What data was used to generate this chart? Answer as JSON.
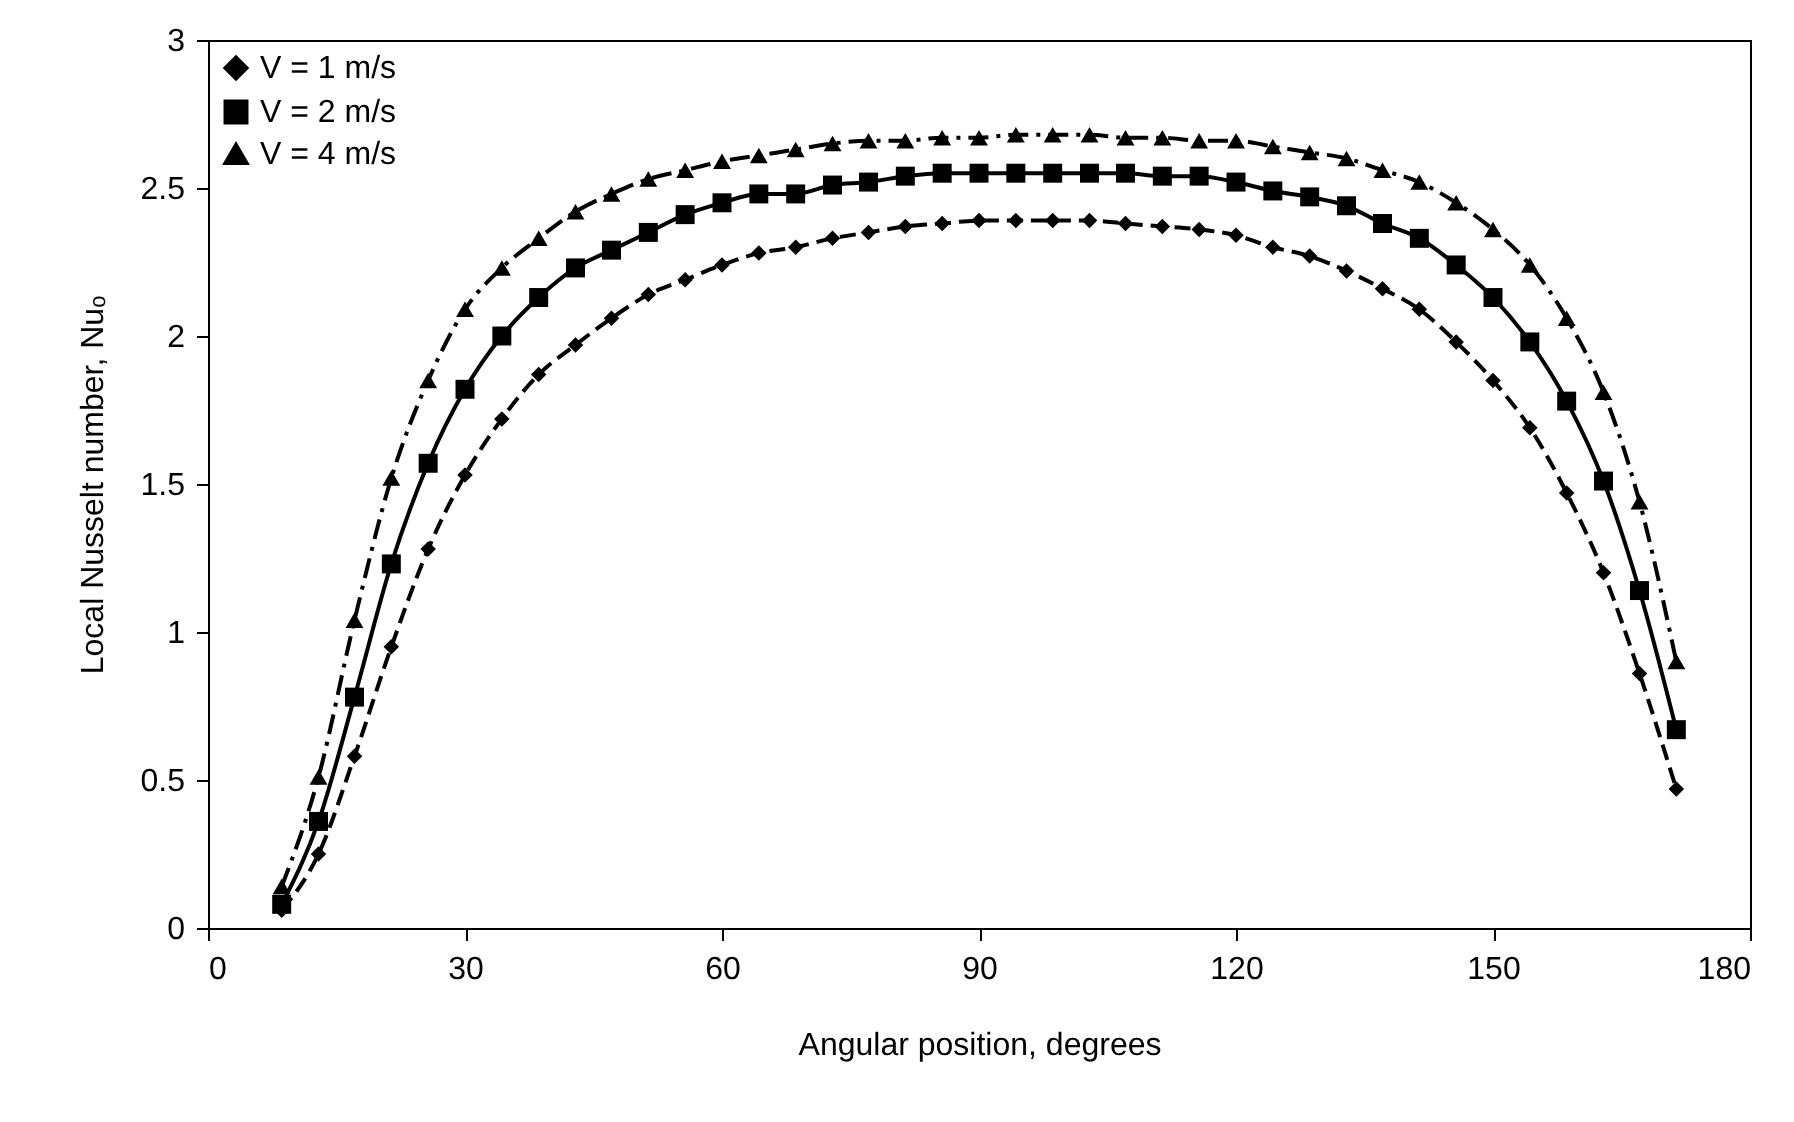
{
  "chart_data": {
    "type": "line",
    "xlabel": "Angular position, degrees",
    "ylabel": "Local Nusselt number, Nuₒ",
    "x": [
      8.6,
      12.9,
      17.1,
      21.4,
      25.7,
      30,
      34.3,
      38.6,
      42.9,
      47.1,
      51.4,
      55.7,
      60,
      64.3,
      68.6,
      72.9,
      77.1,
      81.4,
      85.7,
      90,
      94.3,
      98.6,
      102.9,
      107.1,
      111.4,
      115.7,
      120,
      124.3,
      128.6,
      132.9,
      137.1,
      141.4,
      145.7,
      150,
      154.3,
      158.6,
      162.9,
      167.1,
      171.4
    ],
    "series": [
      {
        "name": "V = 1 m/s",
        "color": "#000000",
        "marker": "diamond",
        "line_style": "dashed",
        "values": [
          0.06,
          0.25,
          0.58,
          0.95,
          1.28,
          1.53,
          1.72,
          1.87,
          1.97,
          2.06,
          2.14,
          2.19,
          2.24,
          2.28,
          2.3,
          2.33,
          2.35,
          2.37,
          2.38,
          2.39,
          2.39,
          2.39,
          2.39,
          2.38,
          2.37,
          2.36,
          2.34,
          2.3,
          2.27,
          2.22,
          2.16,
          2.09,
          1.98,
          1.85,
          1.69,
          1.47,
          1.2,
          0.86,
          0.47
        ]
      },
      {
        "name": "V = 2 m/s",
        "color": "#000000",
        "marker": "square",
        "line_style": "solid",
        "values": [
          0.08,
          0.36,
          0.78,
          1.23,
          1.57,
          1.82,
          2.0,
          2.13,
          2.23,
          2.29,
          2.35,
          2.41,
          2.45,
          2.48,
          2.48,
          2.51,
          2.52,
          2.54,
          2.55,
          2.55,
          2.55,
          2.55,
          2.55,
          2.55,
          2.54,
          2.54,
          2.52,
          2.49,
          2.47,
          2.44,
          2.38,
          2.33,
          2.24,
          2.13,
          1.98,
          1.78,
          1.51,
          1.14,
          0.67
        ]
      },
      {
        "name": "V = 4 m/s",
        "color": "#000000",
        "marker": "triangle",
        "line_style": "dashdot",
        "values": [
          0.14,
          0.51,
          1.04,
          1.52,
          1.85,
          2.09,
          2.23,
          2.33,
          2.42,
          2.48,
          2.53,
          2.56,
          2.59,
          2.61,
          2.63,
          2.65,
          2.66,
          2.66,
          2.67,
          2.67,
          2.68,
          2.68,
          2.68,
          2.67,
          2.67,
          2.66,
          2.66,
          2.64,
          2.62,
          2.6,
          2.56,
          2.52,
          2.45,
          2.36,
          2.24,
          2.06,
          1.81,
          1.44,
          0.9
        ]
      }
    ],
    "xlim": [
      0,
      180
    ],
    "xticks": [
      0,
      30,
      60,
      90,
      120,
      150,
      180
    ],
    "ylim": [
      0,
      3
    ],
    "yticks": [
      0,
      0.5,
      1,
      1.5,
      2,
      2.5,
      3
    ],
    "legend": "top left"
  }
}
